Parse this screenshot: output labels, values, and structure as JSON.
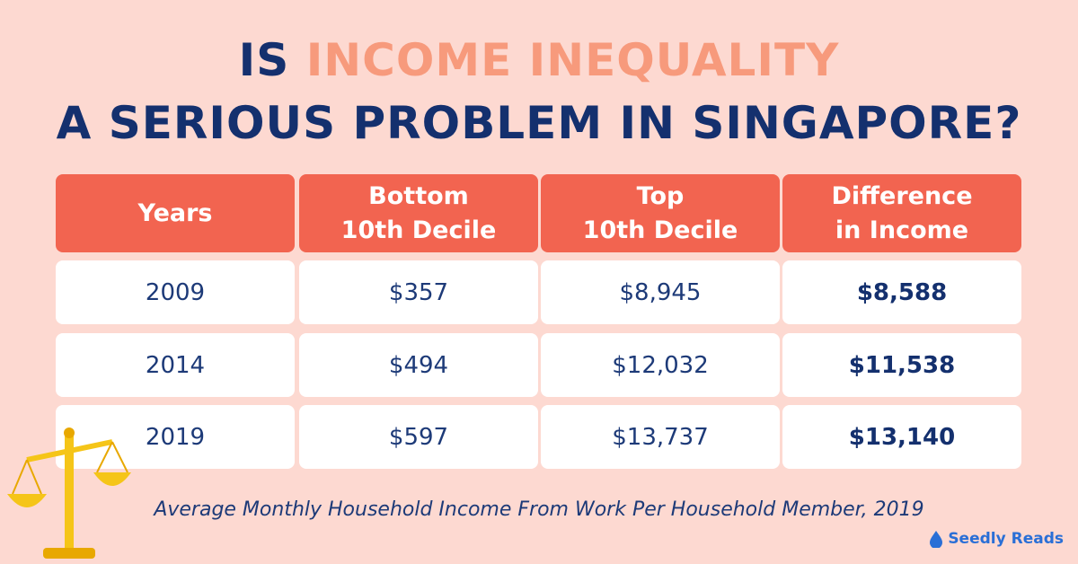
{
  "title": {
    "line1_prefix": "IS",
    "highlight": "INCOME INEQUALITY",
    "line2": "A SERIOUS PROBLEM IN SINGAPORE?"
  },
  "table": {
    "headers": [
      [
        "Years"
      ],
      [
        "Bottom",
        "10th Decile"
      ],
      [
        "Top",
        "10th Decile"
      ],
      [
        "Difference",
        "in Income"
      ]
    ],
    "rows": [
      [
        "2009",
        "$357",
        "$8,945",
        "$8,588"
      ],
      [
        "2014",
        "$494",
        "$12,032",
        "$11,538"
      ],
      [
        "2019",
        "$597",
        "$13,737",
        "$13,140"
      ]
    ]
  },
  "caption": "Average Monthly Household Income From Work Per Household Member, 2019",
  "brand": "Seedly Reads"
}
